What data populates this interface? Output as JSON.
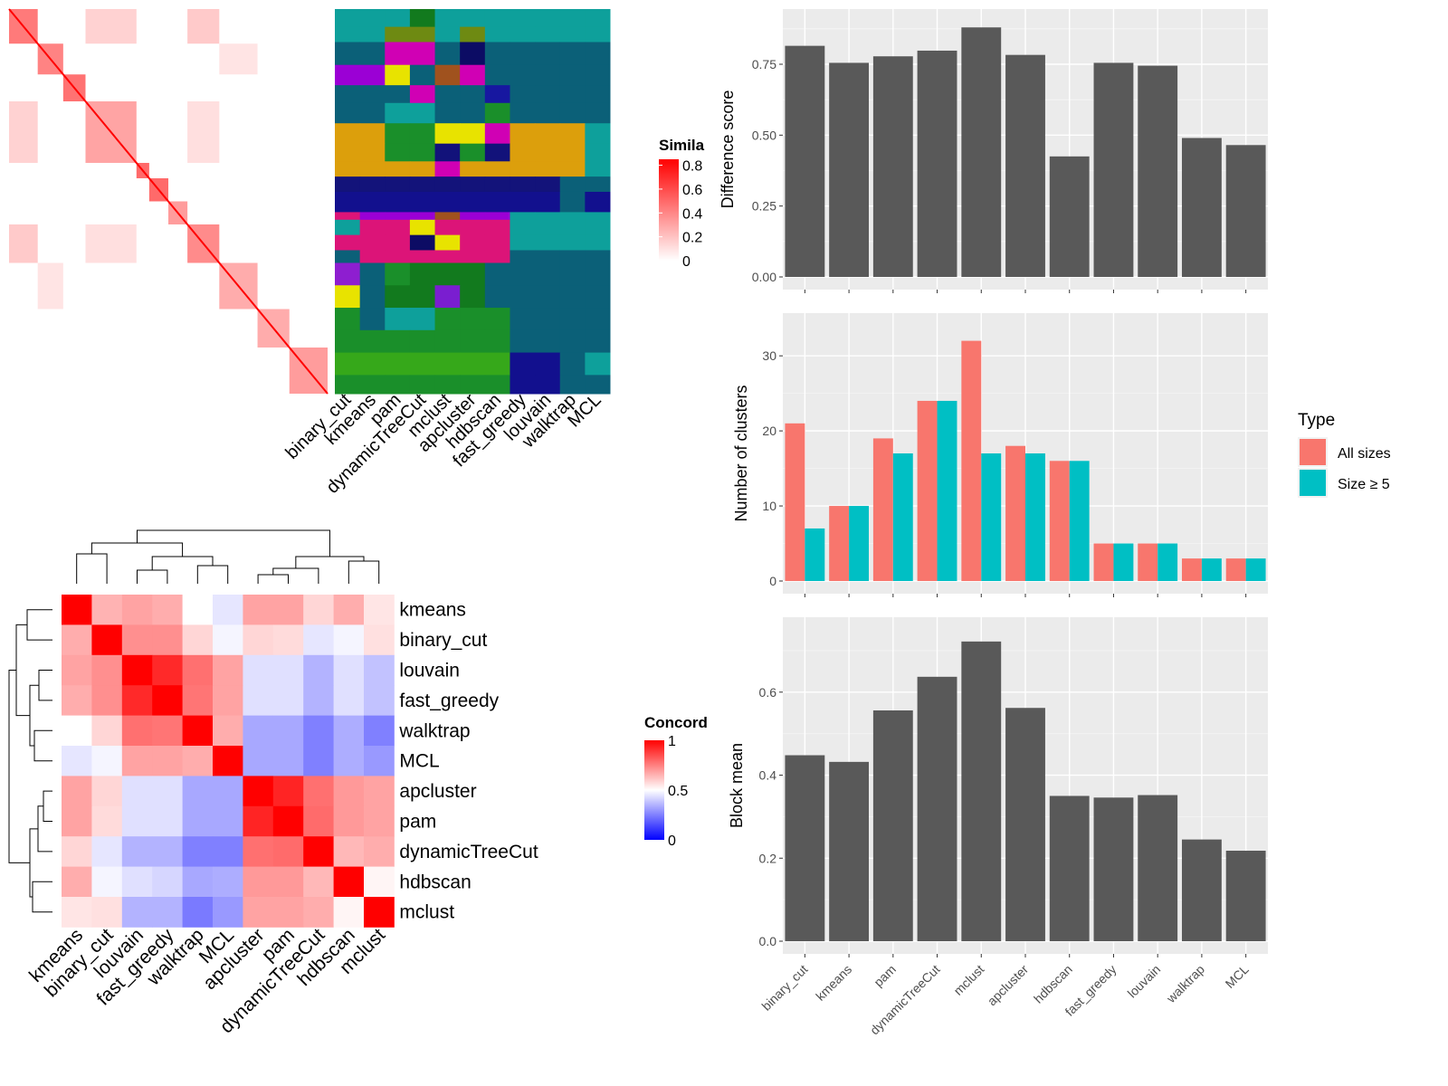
{
  "colors": {
    "panel_bg": "#ebebeb",
    "grid_major": "#ffffff",
    "bar_fill": "#595959",
    "all_sizes": "#f8766d",
    "size_ge_5": "#00bfc4",
    "sim_high": "#ff0000",
    "concord_low": "#0000ff",
    "concord_mid": "#ffffff",
    "concord_high": "#ff0000"
  },
  "chart_data": [
    {
      "id": "similarity_heatmap",
      "type": "heatmap",
      "legend_title": "Simila",
      "legend_ticks": [
        "0.8",
        "0.6",
        "0.4",
        "0.2",
        "0"
      ],
      "legend_values": [
        0.8,
        0.6,
        0.4,
        0.2,
        0
      ],
      "legend_placement": "right",
      "diagonal_blocks": [
        {
          "start": 0.0,
          "end": 0.09,
          "strength": 0.8
        },
        {
          "start": 0.09,
          "end": 0.17,
          "strength": 0.75
        },
        {
          "start": 0.17,
          "end": 0.24,
          "strength": 0.85
        },
        {
          "start": 0.24,
          "end": 0.4,
          "strength": 0.55
        },
        {
          "start": 0.4,
          "end": 0.44,
          "strength": 0.9
        },
        {
          "start": 0.44,
          "end": 0.5,
          "strength": 0.9
        },
        {
          "start": 0.5,
          "end": 0.56,
          "strength": 0.6
        },
        {
          "start": 0.56,
          "end": 0.66,
          "strength": 0.7
        },
        {
          "start": 0.66,
          "end": 0.78,
          "strength": 0.5
        },
        {
          "start": 0.78,
          "end": 0.88,
          "strength": 0.5
        },
        {
          "start": 0.88,
          "end": 1.0,
          "strength": 0.6
        }
      ]
    },
    {
      "id": "cluster_assignment_heatmap",
      "type": "heatmap",
      "columns": [
        "binary_cut",
        "kmeans",
        "pam",
        "dynamicTreeCut",
        "mclust",
        "apcluster",
        "hdbscan",
        "fast_greedy",
        "louvain",
        "walktrap",
        "MCL"
      ],
      "row_bands": [
        {
          "start": 0.0,
          "end": 0.07,
          "colors": [
            "#0ea09b",
            "#0ea09b",
            "#0ea09b",
            "#127a1e",
            "#0ea09b",
            "#0ea09b",
            "#0ea09b",
            "#0ea09b",
            "#0ea09b",
            "#0ea09b",
            "#0ea09b"
          ]
        },
        {
          "start": 0.07,
          "end": 0.13,
          "colors": [
            "#0ea09b",
            "#0ea09b",
            "#6e8a12",
            "#6e8a12",
            "#0ea09b",
            "#6e8a12",
            "#0ea09b",
            "#0ea09b",
            "#0ea09b",
            "#0ea09b",
            "#0ea09b"
          ]
        },
        {
          "start": 0.13,
          "end": 0.22,
          "colors": [
            "#0b6078",
            "#0b6078",
            "#d000b4",
            "#d000b4",
            "#0b6078",
            "#0c0c64",
            "#0b6078",
            "#0b6078",
            "#0b6078",
            "#0b6078",
            "#0b6078"
          ]
        },
        {
          "start": 0.22,
          "end": 0.3,
          "colors": [
            "#9b00d5",
            "#9b00d5",
            "#e8e300",
            "#0b6078",
            "#a0521e",
            "#d000b4",
            "#0b6078",
            "#0b6078",
            "#0b6078",
            "#0b6078",
            "#0b6078"
          ]
        },
        {
          "start": 0.3,
          "end": 0.37,
          "colors": [
            "#0b6078",
            "#0b6078",
            "#0b6078",
            "#d000b4",
            "#0b6078",
            "#0b6078",
            "#1717a0",
            "#0b6078",
            "#0b6078",
            "#0b6078",
            "#0b6078"
          ]
        },
        {
          "start": 0.37,
          "end": 0.45,
          "colors": [
            "#0b6078",
            "#0b6078",
            "#0ea09b",
            "#0ea09b",
            "#0b6078",
            "#0b6078",
            "#1a8f2a",
            "#0b6078",
            "#0b6078",
            "#0b6078",
            "#0b6078"
          ]
        },
        {
          "start": 0.45,
          "end": 0.53,
          "colors": [
            "#dc9f0c",
            "#dc9f0c",
            "#1a8f2a",
            "#1a8f2a",
            "#e8e300",
            "#e8e300",
            "#d000b4",
            "#dc9f0c",
            "#dc9f0c",
            "#dc9f0c",
            "#0ea09b"
          ]
        },
        {
          "start": 0.53,
          "end": 0.6,
          "colors": [
            "#dc9f0c",
            "#dc9f0c",
            "#1a8f2a",
            "#1a8f2a",
            "#12127a",
            "#1a8f2a",
            "#12127a",
            "#dc9f0c",
            "#dc9f0c",
            "#dc9f0c",
            "#0ea09b"
          ]
        },
        {
          "start": 0.6,
          "end": 0.66,
          "colors": [
            "#dc9f0c",
            "#dc9f0c",
            "#dc9f0c",
            "#dc9f0c",
            "#d000b4",
            "#dc9f0c",
            "#dc9f0c",
            "#dc9f0c",
            "#dc9f0c",
            "#dc9f0c",
            "#0ea09b"
          ]
        },
        {
          "start": 0.66,
          "end": 0.72,
          "colors": [
            "#13137a",
            "#13137a",
            "#13137a",
            "#13137a",
            "#13137a",
            "#13137a",
            "#13137a",
            "#13137a",
            "#13137a",
            "#0b6078",
            "#0b6078"
          ]
        },
        {
          "start": 0.72,
          "end": 0.8,
          "colors": [
            "#12108e",
            "#12108e",
            "#12108e",
            "#12108e",
            "#12108e",
            "#12108e",
            "#12108e",
            "#12108e",
            "#12108e",
            "#0b6078",
            "#12108e"
          ]
        },
        {
          "start": 0.8,
          "end": 0.83,
          "colors": [
            "#dc1478",
            "#9b00d5",
            "#9b00d5",
            "#9b00d5",
            "#a0521e",
            "#9b00d5",
            "#9b00d5",
            "#0ea09b",
            "#0ea09b",
            "#0ea09b",
            "#0ea09b"
          ]
        },
        {
          "start": 0.83,
          "end": 0.89,
          "colors": [
            "#0ea09b",
            "#dc1478",
            "#dc1478",
            "#e8e300",
            "#dc1478",
            "#dc1478",
            "#dc1478",
            "#0ea09b",
            "#0ea09b",
            "#0ea09b",
            "#0ea09b"
          ]
        },
        {
          "start": 0.89,
          "end": 0.95,
          "colors": [
            "#dc1478",
            "#dc1478",
            "#dc1478",
            "#0c0c64",
            "#e8e300",
            "#dc1478",
            "#dc1478",
            "#0ea09b",
            "#0ea09b",
            "#0ea09b",
            "#0ea09b"
          ]
        },
        {
          "start": 0.95,
          "end": 1.0,
          "colors": [
            "#0b6078",
            "#dc1478",
            "#dc1478",
            "#dc1478",
            "#dc1478",
            "#dc1478",
            "#dc1478",
            "#0b6078",
            "#0b6078",
            "#0b6078",
            "#0b6078"
          ]
        }
      ],
      "lower_bands": [
        {
          "start": 0.0,
          "end": 0.06,
          "colors": [
            "#8e1ed0",
            "#0b6078",
            "#1a8f2a",
            "#127a1e",
            "#127a1e",
            "#127a1e",
            "#0b6078",
            "#0b6078",
            "#0b6078",
            "#0b6078",
            "#0b6078"
          ]
        },
        {
          "start": 0.06,
          "end": 0.12,
          "colors": [
            "#e8e300",
            "#0b6078",
            "#127a1e",
            "#127a1e",
            "#7a1ed0",
            "#127a1e",
            "#0b6078",
            "#0b6078",
            "#0b6078",
            "#0b6078",
            "#0b6078"
          ]
        },
        {
          "start": 0.12,
          "end": 0.18,
          "colors": [
            "#1a8f2a",
            "#0b6078",
            "#0ea09b",
            "#0ea09b",
            "#1a8f2a",
            "#1a8f2a",
            "#1a8f2a",
            "#0b6078",
            "#0b6078",
            "#0b6078",
            "#0b6078"
          ]
        },
        {
          "start": 0.18,
          "end": 0.24,
          "colors": [
            "#1a8f2a",
            "#1a8f2a",
            "#1a8f2a",
            "#1a8f2a",
            "#1a8f2a",
            "#1a8f2a",
            "#1a8f2a",
            "#0b6078",
            "#0b6078",
            "#0b6078",
            "#0b6078"
          ]
        },
        {
          "start": 0.24,
          "end": 0.3,
          "colors": [
            "#36a81a",
            "#36a81a",
            "#36a81a",
            "#36a81a",
            "#36a81a",
            "#36a81a",
            "#36a81a",
            "#12108e",
            "#12108e",
            "#0b6078",
            "#0ea09b"
          ]
        },
        {
          "start": 0.3,
          "end": 0.35,
          "colors": [
            "#1a8f2a",
            "#1a8f2a",
            "#1a8f2a",
            "#1a8f2a",
            "#1a8f2a",
            "#1a8f2a",
            "#1a8f2a",
            "#12108e",
            "#12108e",
            "#0b6078",
            "#0b6078"
          ]
        }
      ]
    },
    {
      "id": "concordance_heatmap",
      "type": "heatmap",
      "legend_title": "Concord",
      "legend_ticks": [
        "1",
        "0.5",
        "0"
      ],
      "legend_values": [
        1,
        0.5,
        0
      ],
      "legend_placement": "right",
      "labels": [
        "kmeans",
        "binary_cut",
        "louvain",
        "fast_greedy",
        "walktrap",
        "MCL",
        "apcluster",
        "pam",
        "dynamicTreeCut",
        "hdbscan",
        "mclust"
      ],
      "values": [
        [
          1.0,
          0.65,
          0.68,
          0.66,
          0.5,
          0.45,
          0.68,
          0.68,
          0.58,
          0.66,
          0.55
        ],
        [
          0.66,
          1.0,
          0.72,
          0.72,
          0.58,
          0.48,
          0.58,
          0.57,
          0.45,
          0.48,
          0.56
        ],
        [
          0.68,
          0.72,
          1.0,
          0.92,
          0.78,
          0.68,
          0.44,
          0.44,
          0.35,
          0.44,
          0.38
        ],
        [
          0.66,
          0.72,
          0.92,
          1.0,
          0.77,
          0.68,
          0.44,
          0.44,
          0.35,
          0.44,
          0.38
        ],
        [
          0.5,
          0.58,
          0.78,
          0.77,
          1.0,
          0.66,
          0.33,
          0.33,
          0.25,
          0.34,
          0.25
        ],
        [
          0.45,
          0.48,
          0.68,
          0.68,
          0.66,
          1.0,
          0.33,
          0.33,
          0.25,
          0.34,
          0.3
        ],
        [
          0.68,
          0.58,
          0.44,
          0.44,
          0.33,
          0.33,
          1.0,
          0.93,
          0.78,
          0.7,
          0.68
        ],
        [
          0.68,
          0.57,
          0.44,
          0.44,
          0.33,
          0.33,
          0.93,
          1.0,
          0.79,
          0.7,
          0.68
        ],
        [
          0.58,
          0.45,
          0.35,
          0.35,
          0.25,
          0.25,
          0.78,
          0.79,
          1.0,
          0.64,
          0.66
        ],
        [
          0.66,
          0.48,
          0.44,
          0.42,
          0.33,
          0.34,
          0.7,
          0.7,
          0.64,
          1.0,
          0.52
        ],
        [
          0.55,
          0.56,
          0.35,
          0.35,
          0.24,
          0.3,
          0.68,
          0.68,
          0.66,
          0.52,
          1.0
        ]
      ]
    },
    {
      "id": "difference_score",
      "type": "bar",
      "categories": [
        "binary_cut",
        "kmeans",
        "pam",
        "dynamicTreeCut",
        "mclust",
        "apcluster",
        "hdbscan",
        "fast_greedy",
        "louvain",
        "walktrap",
        "MCL"
      ],
      "values": [
        0.815,
        0.755,
        0.778,
        0.798,
        0.88,
        0.783,
        0.425,
        0.755,
        0.745,
        0.49,
        0.465
      ],
      "ylabel": "Difference score",
      "ylim": [
        0,
        0.9
      ],
      "yticks": [
        0,
        0.25,
        0.5,
        0.75
      ],
      "ytick_labels": [
        "0.00",
        "0.25",
        "0.50",
        "0.75"
      ],
      "grid": true
    },
    {
      "id": "number_of_clusters",
      "type": "bar",
      "categories": [
        "binary_cut",
        "kmeans",
        "pam",
        "dynamicTreeCut",
        "mclust",
        "apcluster",
        "hdbscan",
        "fast_greedy",
        "louvain",
        "walktrap",
        "MCL"
      ],
      "series": [
        {
          "name": "All sizes",
          "values": [
            21,
            10,
            19,
            24,
            32,
            18,
            16,
            5,
            5,
            3,
            3
          ]
        },
        {
          "name": "Size ≥ 5",
          "values": [
            7,
            10,
            17,
            24,
            17,
            17,
            16,
            5,
            5,
            3,
            3
          ]
        }
      ],
      "ylabel": "Number of clusters",
      "ylim": [
        0,
        34
      ],
      "yticks": [
        0,
        10,
        20,
        30
      ],
      "ytick_labels": [
        "0",
        "10",
        "20",
        "30"
      ],
      "legend_title": "Type",
      "legend_placement": "right",
      "grid": true
    },
    {
      "id": "block_mean",
      "type": "bar",
      "categories": [
        "binary_cut",
        "kmeans",
        "pam",
        "dynamicTreeCut",
        "mclust",
        "apcluster",
        "hdbscan",
        "fast_greedy",
        "louvain",
        "walktrap",
        "MCL"
      ],
      "values": [
        0.448,
        0.432,
        0.556,
        0.637,
        0.722,
        0.562,
        0.35,
        0.346,
        0.352,
        0.245,
        0.218
      ],
      "ylabel": "Block mean",
      "ylim": [
        0,
        0.75
      ],
      "yticks": [
        0,
        0.2,
        0.4,
        0.6
      ],
      "ytick_labels": [
        "0.0",
        "0.2",
        "0.4",
        "0.6"
      ],
      "grid": true
    }
  ]
}
